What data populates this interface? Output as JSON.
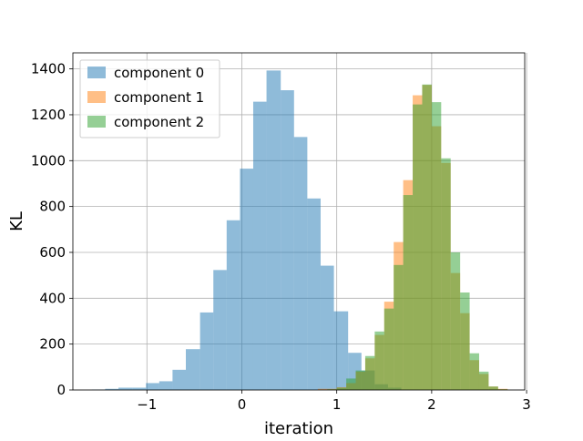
{
  "chart_data": {
    "type": "bar",
    "subtype": "overlapping-histogram",
    "title": "",
    "xlabel": "iteration",
    "ylabel": "KL",
    "xlim": [
      -1.78,
      2.98
    ],
    "ylim": [
      0,
      1470
    ],
    "xticks": [
      -1,
      0,
      1,
      2,
      3
    ],
    "xtick_labels": [
      "−1",
      "0",
      "1",
      "2",
      "3"
    ],
    "yticks": [
      0,
      200,
      400,
      600,
      800,
      1000,
      1200,
      1400
    ],
    "ytick_labels": [
      "0",
      "200",
      "400",
      "600",
      "800",
      "1000",
      "1200",
      "1400"
    ],
    "grid": true,
    "legend_position": "top-left",
    "bar_opacity": 0.5,
    "series": [
      {
        "name": "component 0",
        "color": "#1f77b4",
        "bins": [
          {
            "x0": -1.58,
            "x1": -1.44,
            "y": 2
          },
          {
            "x0": -1.44,
            "x1": -1.3,
            "y": 5
          },
          {
            "x0": -1.3,
            "x1": -1.15,
            "y": 10
          },
          {
            "x0": -1.15,
            "x1": -1.01,
            "y": 10
          },
          {
            "x0": -1.01,
            "x1": -0.87,
            "y": 30
          },
          {
            "x0": -0.87,
            "x1": -0.73,
            "y": 38
          },
          {
            "x0": -0.73,
            "x1": -0.59,
            "y": 88
          },
          {
            "x0": -0.59,
            "x1": -0.44,
            "y": 178
          },
          {
            "x0": -0.44,
            "x1": -0.3,
            "y": 338
          },
          {
            "x0": -0.3,
            "x1": -0.16,
            "y": 523
          },
          {
            "x0": -0.16,
            "x1": -0.02,
            "y": 740
          },
          {
            "x0": -0.02,
            "x1": 0.12,
            "y": 965
          },
          {
            "x0": 0.12,
            "x1": 0.26,
            "y": 1257
          },
          {
            "x0": 0.26,
            "x1": 0.41,
            "y": 1393
          },
          {
            "x0": 0.41,
            "x1": 0.55,
            "y": 1307
          },
          {
            "x0": 0.55,
            "x1": 0.69,
            "y": 1103
          },
          {
            "x0": 0.69,
            "x1": 0.83,
            "y": 835
          },
          {
            "x0": 0.83,
            "x1": 0.97,
            "y": 542
          },
          {
            "x0": 0.97,
            "x1": 1.12,
            "y": 343
          },
          {
            "x0": 1.12,
            "x1": 1.26,
            "y": 162
          },
          {
            "x0": 1.26,
            "x1": 1.4,
            "y": 85
          },
          {
            "x0": 1.4,
            "x1": 1.54,
            "y": 25
          },
          {
            "x0": 1.54,
            "x1": 1.68,
            "y": 10
          }
        ]
      },
      {
        "name": "component 1",
        "color": "#ff7f0e",
        "bins": [
          {
            "x0": 0.8,
            "x1": 0.9,
            "y": 5
          },
          {
            "x0": 0.9,
            "x1": 1.0,
            "y": 5
          },
          {
            "x0": 1.0,
            "x1": 1.1,
            "y": 12
          },
          {
            "x0": 1.1,
            "x1": 1.2,
            "y": 30
          },
          {
            "x0": 1.2,
            "x1": 1.3,
            "y": 80
          },
          {
            "x0": 1.3,
            "x1": 1.4,
            "y": 138
          },
          {
            "x0": 1.4,
            "x1": 1.5,
            "y": 240
          },
          {
            "x0": 1.5,
            "x1": 1.6,
            "y": 385
          },
          {
            "x0": 1.6,
            "x1": 1.7,
            "y": 645
          },
          {
            "x0": 1.7,
            "x1": 1.8,
            "y": 915
          },
          {
            "x0": 1.8,
            "x1": 1.9,
            "y": 1285
          },
          {
            "x0": 1.9,
            "x1": 2.0,
            "y": 1330
          },
          {
            "x0": 2.0,
            "x1": 2.1,
            "y": 1150
          },
          {
            "x0": 2.1,
            "x1": 2.2,
            "y": 990
          },
          {
            "x0": 2.2,
            "x1": 2.3,
            "y": 510
          },
          {
            "x0": 2.3,
            "x1": 2.4,
            "y": 335
          },
          {
            "x0": 2.4,
            "x1": 2.5,
            "y": 130
          },
          {
            "x0": 2.5,
            "x1": 2.6,
            "y": 70
          },
          {
            "x0": 2.6,
            "x1": 2.7,
            "y": 15
          },
          {
            "x0": 2.7,
            "x1": 2.8,
            "y": 5
          }
        ]
      },
      {
        "name": "component 2",
        "color": "#2ca02c",
        "bins": [
          {
            "x0": 0.9,
            "x1": 1.0,
            "y": 3
          },
          {
            "x0": 1.0,
            "x1": 1.1,
            "y": 10
          },
          {
            "x0": 1.1,
            "x1": 1.2,
            "y": 50
          },
          {
            "x0": 1.2,
            "x1": 1.3,
            "y": 85
          },
          {
            "x0": 1.3,
            "x1": 1.4,
            "y": 148
          },
          {
            "x0": 1.4,
            "x1": 1.5,
            "y": 255
          },
          {
            "x0": 1.5,
            "x1": 1.6,
            "y": 355
          },
          {
            "x0": 1.6,
            "x1": 1.7,
            "y": 545
          },
          {
            "x0": 1.7,
            "x1": 1.8,
            "y": 850
          },
          {
            "x0": 1.8,
            "x1": 1.9,
            "y": 1245
          },
          {
            "x0": 1.9,
            "x1": 2.0,
            "y": 1332
          },
          {
            "x0": 2.0,
            "x1": 2.1,
            "y": 1255
          },
          {
            "x0": 2.1,
            "x1": 2.2,
            "y": 1010
          },
          {
            "x0": 2.2,
            "x1": 2.3,
            "y": 600
          },
          {
            "x0": 2.3,
            "x1": 2.4,
            "y": 425
          },
          {
            "x0": 2.4,
            "x1": 2.5,
            "y": 160
          },
          {
            "x0": 2.5,
            "x1": 2.6,
            "y": 80
          },
          {
            "x0": 2.6,
            "x1": 2.7,
            "y": 15
          },
          {
            "x0": 2.7,
            "x1": 2.8,
            "y": 3
          }
        ]
      }
    ]
  }
}
